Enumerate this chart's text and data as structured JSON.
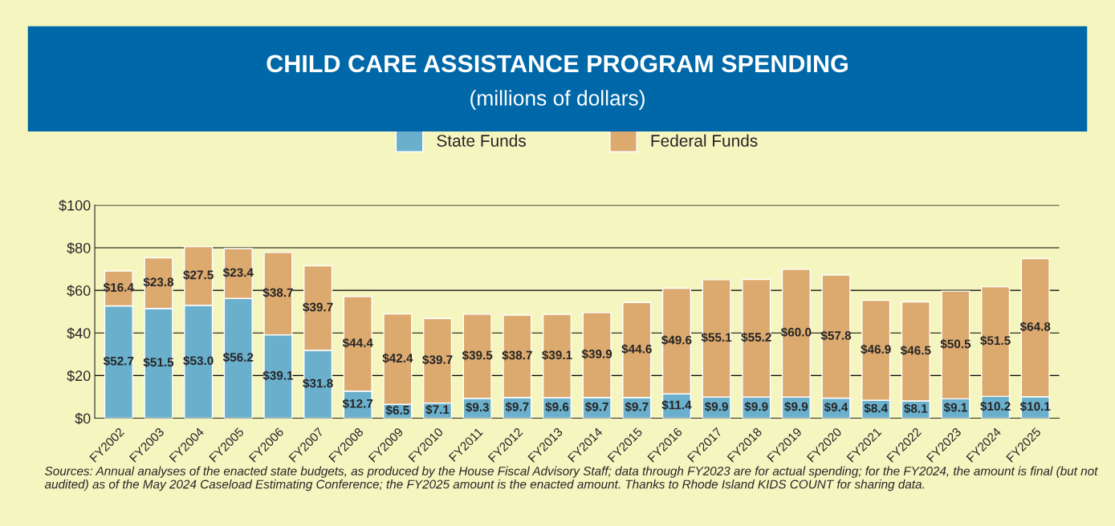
{
  "chart_data": {
    "type": "bar",
    "title": "CHILD CARE ASSISTANCE PROGRAM SPENDING",
    "subtitle": "(millions of dollars)",
    "categories": [
      "FY2002",
      "FY2003",
      "FY2004",
      "FY2005",
      "FY2006",
      "FY2007",
      "FY2008",
      "FY2009",
      "FY2010",
      "FY2011",
      "FY2012",
      "FY2013",
      "FY2014",
      "FY2015",
      "FY2016",
      "FY2017",
      "FY2018",
      "FY2019",
      "FY2020",
      "FY2021",
      "FY2022",
      "FY2023",
      "FY2024",
      "FY2025"
    ],
    "series": [
      {
        "name": "State Funds",
        "color": "#6ab0cc",
        "values": [
          52.7,
          51.5,
          53.0,
          56.2,
          39.1,
          31.8,
          12.7,
          6.5,
          7.1,
          9.3,
          9.7,
          9.6,
          9.7,
          9.7,
          11.4,
          9.9,
          9.9,
          9.9,
          9.4,
          8.4,
          8.1,
          9.1,
          10.2,
          10.1
        ],
        "value_labels": [
          "$52.7",
          "$51.5",
          "$53.0",
          "$56.2",
          "$39.1",
          "$31.8",
          "$12.7",
          "$6.5",
          "$7.1",
          "$9.3",
          "$9.7",
          "$9.6",
          "$9.7",
          "$9.7",
          "$11.4",
          "$9.9",
          "$9.9",
          "$9.9",
          "$9.4",
          "$8.4",
          "$8.1",
          "$9.1",
          "$10.2",
          "$10.1"
        ]
      },
      {
        "name": "Federal Funds",
        "color": "#dcaa6e",
        "values": [
          16.4,
          23.8,
          27.5,
          23.4,
          38.7,
          39.7,
          44.4,
          42.4,
          39.7,
          39.5,
          38.7,
          39.1,
          39.9,
          44.6,
          49.6,
          55.1,
          55.2,
          60.0,
          57.8,
          46.9,
          46.5,
          50.5,
          51.5,
          64.8
        ],
        "value_labels": [
          "$16.4",
          "$23.8",
          "$27.5",
          "$23.4",
          "$38.7",
          "$39.7",
          "$44.4",
          "$42.4",
          "$39.7",
          "$39.5",
          "$38.7",
          "$39.1",
          "$39.9",
          "$44.6",
          "$49.6",
          "$55.1",
          "$55.2",
          "$60.0",
          "$57.8",
          "$46.9",
          "$46.5",
          "$50.5",
          "$51.5",
          "$64.8"
        ]
      }
    ],
    "stacked": true,
    "ylim": [
      0,
      100
    ],
    "yticks": [
      {
        "value": 0,
        "label": "$0"
      },
      {
        "value": 20,
        "label": "$20"
      },
      {
        "value": 40,
        "label": "$40"
      },
      {
        "value": 60,
        "label": "$60"
      },
      {
        "value": 80,
        "label": "$80"
      },
      {
        "value": 100,
        "label": "$100"
      }
    ],
    "grid": "y",
    "legend": "top",
    "annotations": [
      "Sources: Annual analyses of the enacted state budgets, as produced by the House Fiscal Advisory Staff; data through FY2023 are for actual spending; for the FY2024, the amount is final (but not audited) as of the May 2024 Caseload Estimating Conference; the FY2025 amount is the enacted amount. Thanks to Rhode Island KIDS COUNT for sharing data."
    ]
  }
}
